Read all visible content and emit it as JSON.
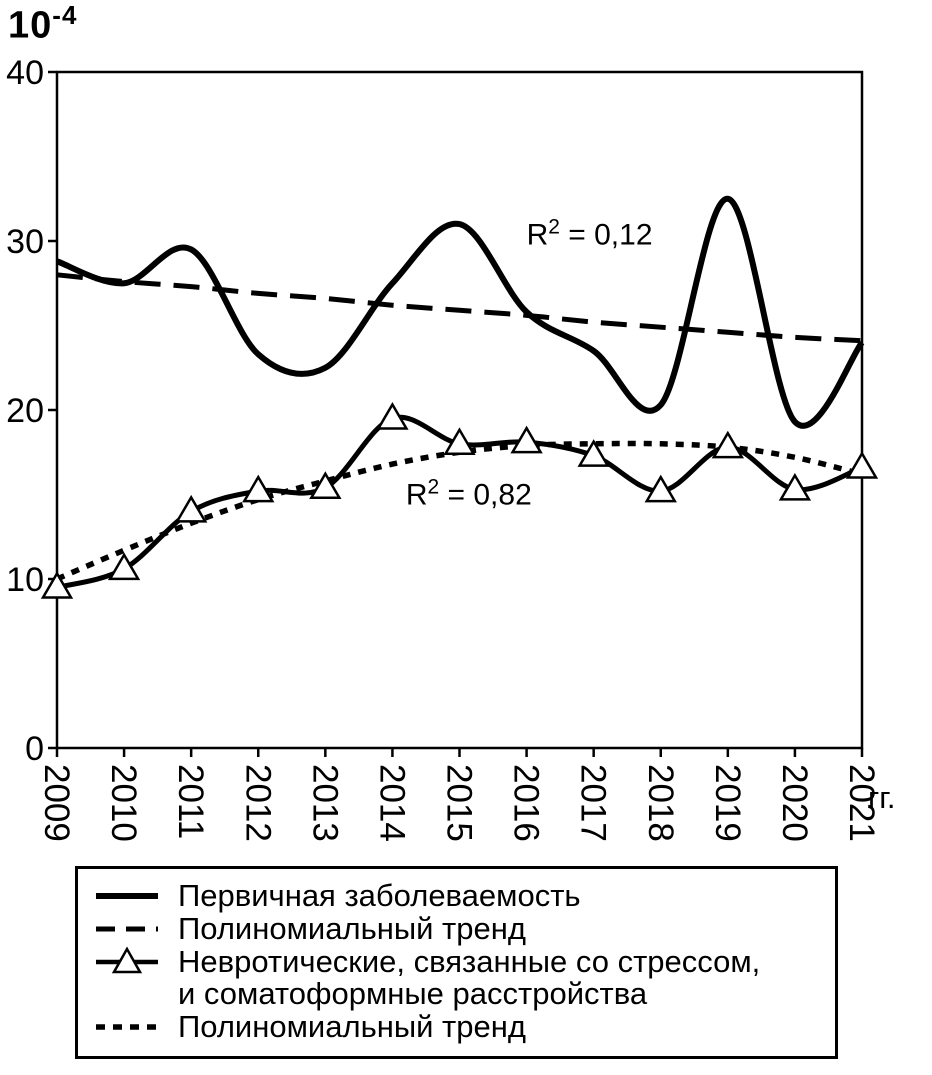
{
  "axis": {
    "scale_base": "10",
    "scale_exp": "-4"
  },
  "chart_data": {
    "type": "line",
    "x": [
      2009,
      2010,
      2011,
      2012,
      2013,
      2014,
      2015,
      2016,
      2017,
      2018,
      2019,
      2020,
      2021
    ],
    "xlabel": "гг.",
    "ylabel": "",
    "ylim": [
      0,
      40
    ],
    "yticks": [
      0,
      10,
      20,
      30,
      40
    ],
    "y_scale_factor": "1e-4",
    "grid": false,
    "legend_position": "bottom",
    "series": [
      {
        "name": "Первичная заболеваемость",
        "style": "solid-thick",
        "values": [
          28.8,
          27.5,
          29.5,
          23.3,
          22.5,
          27.5,
          31.0,
          25.8,
          23.5,
          20.3,
          32.5,
          19.3,
          24.0
        ]
      },
      {
        "name": "Полиномиальный тренд",
        "style": "long-dash",
        "values": [
          28.0,
          27.6,
          27.3,
          26.9,
          26.6,
          26.2,
          25.9,
          25.6,
          25.2,
          24.9,
          24.6,
          24.3,
          24.1
        ]
      },
      {
        "name": "Невротические, связанные со стрессом, и соматоформные расстройства",
        "style": "solid-triangle-markers",
        "values": [
          9.5,
          10.6,
          14.0,
          15.2,
          15.4,
          19.5,
          18.0,
          18.1,
          17.3,
          15.2,
          17.8,
          15.3,
          16.6
        ]
      },
      {
        "name": "Полиномиальный тренд",
        "style": "short-dash",
        "values": [
          10.0,
          11.7,
          13.3,
          14.7,
          15.8,
          16.8,
          17.5,
          17.9,
          18.0,
          18.0,
          17.8,
          17.2,
          16.2
        ]
      }
    ],
    "annotations": [
      {
        "base": "R",
        "sup": "2",
        "rest": " = 0,12",
        "x": 2016.0,
        "y": 29.8
      },
      {
        "base": "R",
        "sup": "2",
        "rest": " = 0,82",
        "x": 2014.2,
        "y": 14.4
      }
    ]
  },
  "legend": {
    "items": [
      {
        "label": "Первичная заболеваемость",
        "style": "solid-thick"
      },
      {
        "label": "Полиномиальный тренд",
        "style": "long-dash"
      },
      {
        "label": "Невротические, связанные со стрессом,",
        "label2": "и соматоформные расстройства",
        "style": "solid-triangle-markers"
      },
      {
        "label": "Полиномиальный тренд",
        "style": "short-dash"
      }
    ]
  }
}
